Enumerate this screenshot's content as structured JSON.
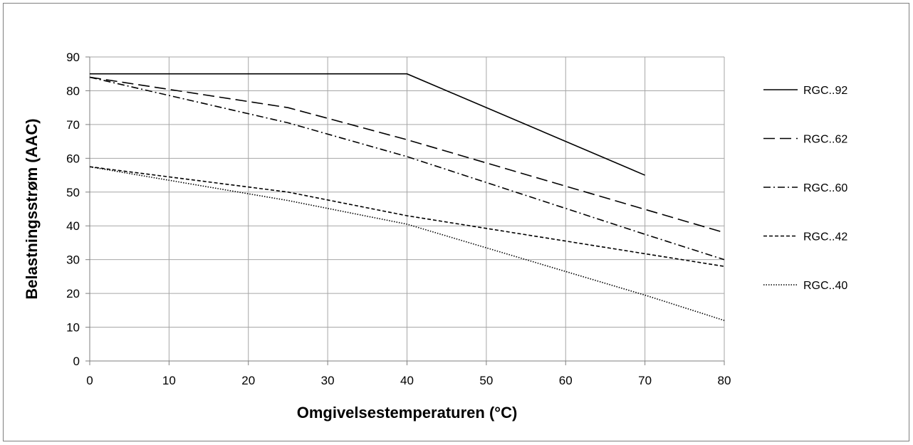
{
  "chart_data": {
    "type": "line",
    "title": "",
    "xlabel": "Omgivelsestemperaturen (°C)",
    "ylabel": "Belastningsstrøm (AAC)",
    "xlim": [
      0,
      80
    ],
    "ylim": [
      0,
      90
    ],
    "xticks": [
      0,
      10,
      20,
      30,
      40,
      50,
      60,
      70,
      80
    ],
    "yticks": [
      0,
      10,
      20,
      30,
      40,
      50,
      60,
      70,
      80,
      90
    ],
    "grid": true,
    "legend_position": "right",
    "series": [
      {
        "name": "RGC..92",
        "style": "solid",
        "x": [
          0,
          40,
          70
        ],
        "y": [
          85,
          85,
          55
        ]
      },
      {
        "name": "RGC..62",
        "style": "long-dash",
        "x": [
          0,
          25,
          40,
          80
        ],
        "y": [
          84,
          75,
          65.5,
          38
        ]
      },
      {
        "name": "RGC..60",
        "style": "dash-dot",
        "x": [
          0,
          25,
          40,
          70,
          80
        ],
        "y": [
          84,
          70.5,
          60.5,
          37.5,
          30
        ]
      },
      {
        "name": "RGC..42",
        "style": "short-dash",
        "x": [
          0,
          25,
          40,
          60,
          80
        ],
        "y": [
          57.5,
          50,
          43,
          35.5,
          28
        ]
      },
      {
        "name": "RGC..40",
        "style": "dotted",
        "x": [
          0,
          25,
          40,
          70,
          80
        ],
        "y": [
          57.5,
          47.5,
          40.5,
          19.5,
          12
        ]
      }
    ]
  }
}
